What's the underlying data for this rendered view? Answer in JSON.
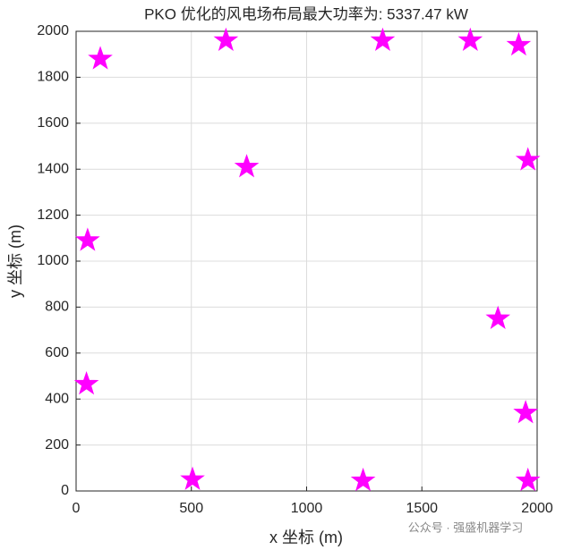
{
  "chart_data": {
    "type": "scatter",
    "title": "PKO 优化的风电场布局最大功率为: 5337.47 kW",
    "x_label": "x 坐标 (m)",
    "y_label": "y 坐标 (m)",
    "x": [
      105,
      650,
      1330,
      1710,
      1920,
      740,
      1960,
      50,
      1830,
      45,
      1950,
      505,
      1245,
      1960
    ],
    "values": [
      1880,
      1960,
      1960,
      1960,
      1940,
      1410,
      1440,
      1090,
      750,
      465,
      340,
      50,
      45,
      45
    ],
    "color": "#ff00ff",
    "xlim": [
      0,
      2000
    ],
    "xticks": [
      0,
      500,
      1000,
      1500,
      2000
    ],
    "ylim": [
      0,
      2000
    ],
    "yticks": [
      0,
      200,
      400,
      600,
      800,
      1000,
      1200,
      1400,
      1600,
      1800,
      2000
    ],
    "grid": true,
    "watermark": "公众号 · 强盛机器学习"
  }
}
